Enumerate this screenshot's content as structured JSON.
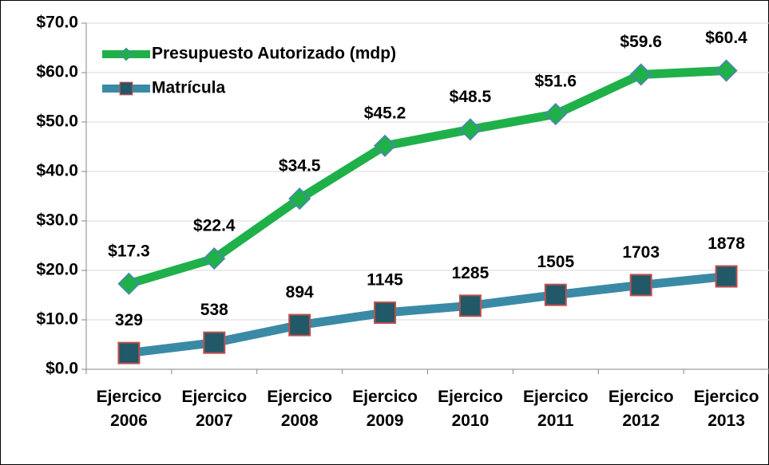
{
  "chart_data": {
    "type": "line",
    "categories": [
      "Ejercico 2006",
      "Ejercico 2007",
      "Ejercico 2008",
      "Ejercico 2009",
      "Ejercico 2010",
      "Ejercico 2011",
      "Ejercico 2012",
      "Ejercico 2013"
    ],
    "series": [
      {
        "name": "Presupuesto Autorizado  (mdp)",
        "color": "#1fb04a",
        "marker": "diamond",
        "values": [
          17.3,
          22.4,
          34.5,
          45.2,
          48.5,
          51.6,
          59.6,
          60.4
        ],
        "value_labels": [
          "$17.3",
          "$22.4",
          "$34.5",
          "$45.2",
          "$48.5",
          "$51.6",
          "$59.6",
          "$60.4"
        ]
      },
      {
        "name": "Matrícula",
        "color": "#3a8aa6",
        "marker": "square",
        "axis": "y2",
        "values": [
          329,
          538,
          894,
          1145,
          1285,
          1505,
          1703,
          1878
        ]
      }
    ],
    "ylim": [
      0,
      70
    ],
    "yticks": [
      {
        "value": 0,
        "label": "$0.0"
      },
      {
        "value": 10,
        "label": "$10.0"
      },
      {
        "value": 20,
        "label": "$20.0"
      },
      {
        "value": 30,
        "label": "$30.0"
      },
      {
        "value": 40,
        "label": "$40.0"
      },
      {
        "value": 50,
        "label": "$50.0"
      },
      {
        "value": 60,
        "label": "$60.0"
      },
      {
        "value": 70,
        "label": "$70.0"
      }
    ],
    "y2lim": [
      0,
      7000
    ],
    "grid": true,
    "legend": "upper left"
  }
}
